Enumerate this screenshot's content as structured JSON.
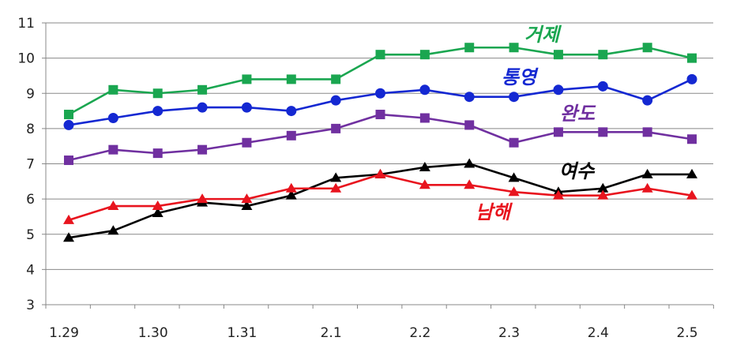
{
  "chart_data": {
    "type": "line",
    "title": "",
    "xlabel": "",
    "ylabel": "",
    "ylim": [
      3,
      11
    ],
    "y_ticks": [
      3,
      4,
      5,
      6,
      7,
      8,
      9,
      10,
      11
    ],
    "x_ticks": [
      "1.29",
      "1.30",
      "1.31",
      "2.1",
      "2.2",
      "2.3",
      "2.4",
      "2.5"
    ],
    "grid": "horizontal",
    "legend": "inline labels",
    "series": [
      {
        "name": "거제",
        "color": "#1aa650",
        "marker": "square",
        "values": [
          8.4,
          9.1,
          9.0,
          9.1,
          9.4,
          9.4,
          9.4,
          10.1,
          10.1,
          10.3,
          10.3,
          10.1,
          10.1,
          10.3,
          10.0
        ]
      },
      {
        "name": "통영",
        "color": "#1428d2",
        "marker": "circle",
        "values": [
          8.1,
          8.3,
          8.5,
          8.6,
          8.6,
          8.5,
          8.8,
          9.0,
          9.1,
          8.9,
          8.9,
          9.1,
          9.2,
          8.8,
          9.4
        ]
      },
      {
        "name": "완도",
        "color": "#7030a0",
        "marker": "square",
        "values": [
          7.1,
          7.4,
          7.3,
          7.4,
          7.6,
          7.8,
          8.0,
          8.4,
          8.3,
          8.1,
          7.6,
          7.9,
          7.9,
          7.9,
          7.7
        ]
      },
      {
        "name": "여수",
        "color": "#000000",
        "marker": "triangle",
        "values": [
          4.9,
          5.1,
          5.6,
          5.9,
          5.8,
          6.1,
          6.6,
          6.7,
          6.9,
          7.0,
          6.6,
          6.2,
          6.3,
          6.7,
          6.7
        ]
      },
      {
        "name": "남해",
        "color": "#e8141e",
        "marker": "triangle",
        "values": [
          5.4,
          5.8,
          5.8,
          6.0,
          6.0,
          6.3,
          6.3,
          6.7,
          6.4,
          6.4,
          6.2,
          6.1,
          6.1,
          6.3,
          6.1
        ]
      }
    ]
  }
}
